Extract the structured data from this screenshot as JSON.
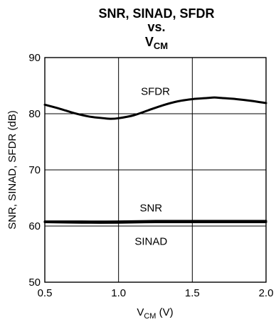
{
  "chart_data": {
    "type": "line",
    "title_lines": [
      "SNR, SINAD, SFDR",
      "vs."
    ],
    "title_var": {
      "base": "V",
      "sub": "CM"
    },
    "xlabel": {
      "base": "V",
      "sub": "CM",
      "suffix": " (V)"
    },
    "ylabel": "SNR, SINAD, SFDR (dB)",
    "xlim": [
      0.5,
      2.0
    ],
    "ylim": [
      50,
      90
    ],
    "xticks": [
      0.5,
      1.0,
      1.5,
      2.0
    ],
    "xtick_labels": [
      "0.5",
      "1.0",
      "1.5",
      "2.0"
    ],
    "yticks": [
      50,
      60,
      70,
      80,
      90
    ],
    "ytick_labels": [
      "50",
      "60",
      "70",
      "80",
      "90"
    ],
    "grid": true,
    "series": [
      {
        "name": "SFDR",
        "x": [
          0.5,
          0.6,
          0.7,
          0.8,
          0.9,
          0.95,
          1.0,
          1.1,
          1.2,
          1.3,
          1.4,
          1.5,
          1.6,
          1.65,
          1.7,
          1.8,
          1.9,
          2.0
        ],
        "y": [
          81.6,
          80.9,
          80.1,
          79.5,
          79.2,
          79.1,
          79.2,
          79.7,
          80.6,
          81.5,
          82.2,
          82.6,
          82.8,
          82.9,
          82.8,
          82.6,
          82.3,
          81.9
        ]
      },
      {
        "name": "SNR",
        "x": [
          0.5,
          0.75,
          1.0,
          1.25,
          1.5,
          1.75,
          2.0
        ],
        "y": [
          60.8,
          60.8,
          60.8,
          60.9,
          60.9,
          60.9,
          60.9
        ]
      },
      {
        "name": "SINAD",
        "x": [
          0.5,
          0.75,
          1.0,
          1.25,
          1.5,
          1.75,
          2.0
        ],
        "y": [
          60.7,
          60.6,
          60.6,
          60.7,
          60.7,
          60.7,
          60.7
        ]
      }
    ],
    "series_label_positions": [
      {
        "name": "SFDR",
        "x": 1.25,
        "y": 84.0
      },
      {
        "name": "SNR",
        "x": 1.22,
        "y": 63.2
      },
      {
        "name": "SINAD",
        "x": 1.22,
        "y": 57.3
      }
    ]
  }
}
